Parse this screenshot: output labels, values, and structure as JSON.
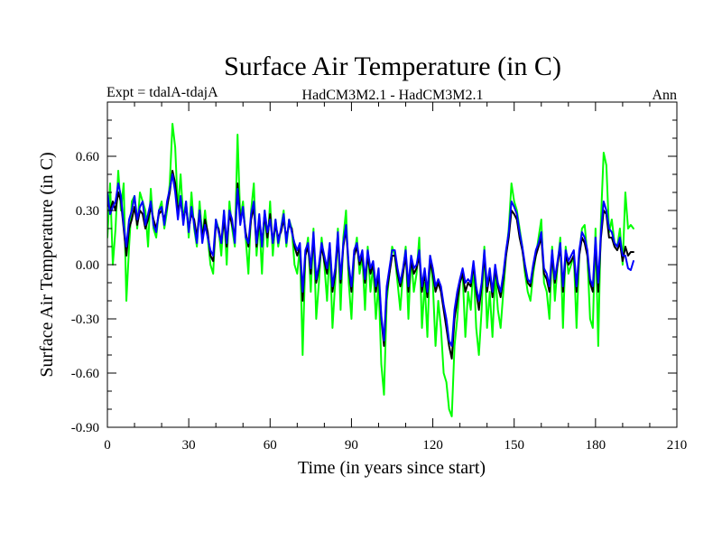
{
  "chart_data": {
    "type": "line",
    "title": "Surface Air Temperature (in C)",
    "subtitle_left": "Expt = tdalA-tdajA",
    "subtitle_center": "HadCM3M2.1 - HadCM3M2.1",
    "subtitle_right": "Ann",
    "xlabel": "Time (in years since start)",
    "ylabel": "Surface Air Temperature (in C)",
    "xlim": [
      0,
      210
    ],
    "ylim": [
      -0.9,
      0.9
    ],
    "xticks": [
      0,
      30,
      60,
      90,
      120,
      150,
      180,
      210
    ],
    "xtick_labels": [
      "0",
      "30",
      "60",
      "90",
      "120",
      "150",
      "180",
      "210"
    ],
    "yticks": [
      -0.9,
      -0.6,
      -0.3,
      0.0,
      0.3,
      0.6
    ],
    "ytick_labels": [
      "-0.90",
      "-0.60",
      "-0.30",
      "0.00",
      "0.30",
      "0.60"
    ],
    "grid": false,
    "x_start": 0,
    "x_step": 1,
    "series": [
      {
        "name": "green",
        "color": "#00ff00",
        "values": [
          0.15,
          0.45,
          0.0,
          0.2,
          0.52,
          0.3,
          0.45,
          -0.2,
          0.1,
          0.35,
          0.38,
          0.2,
          0.4,
          0.35,
          0.3,
          0.1,
          0.42,
          0.2,
          0.15,
          0.3,
          0.35,
          0.2,
          0.3,
          0.45,
          0.78,
          0.65,
          0.3,
          0.5,
          0.25,
          0.35,
          0.15,
          0.4,
          0.2,
          0.1,
          0.35,
          0.15,
          0.3,
          0.15,
          0.0,
          -0.05,
          0.25,
          0.2,
          0.05,
          0.3,
          0.0,
          0.35,
          0.2,
          0.1,
          0.72,
          0.25,
          0.35,
          0.15,
          -0.05,
          0.3,
          0.45,
          0.05,
          0.25,
          -0.05,
          0.3,
          0.1,
          0.35,
          0.05,
          0.25,
          0.1,
          0.2,
          0.3,
          0.1,
          0.25,
          0.2,
          0.0,
          -0.05,
          0.1,
          -0.5,
          0.05,
          0.15,
          -0.15,
          0.2,
          -0.3,
          -0.1,
          0.15,
          0.0,
          -0.2,
          0.1,
          -0.35,
          -0.1,
          0.2,
          -0.25,
          0.15,
          0.3,
          -0.1,
          -0.3,
          0.05,
          0.15,
          -0.05,
          0.05,
          -0.25,
          0.1,
          -0.15,
          0.0,
          -0.3,
          -0.1,
          -0.55,
          -0.72,
          -0.2,
          -0.05,
          0.1,
          0.05,
          -0.1,
          -0.25,
          -0.05,
          0.1,
          -0.3,
          0.05,
          -0.15,
          -0.05,
          0.15,
          -0.35,
          -0.1,
          -0.4,
          0.05,
          -0.1,
          -0.45,
          -0.2,
          -0.35,
          -0.6,
          -0.65,
          -0.8,
          -0.84,
          -0.45,
          -0.3,
          -0.1,
          -0.05,
          -0.4,
          -0.15,
          -0.25,
          0.0,
          -0.35,
          -0.5,
          -0.25,
          0.1,
          -0.35,
          -0.15,
          -0.4,
          -0.05,
          -0.25,
          -0.35,
          -0.15,
          0.05,
          0.2,
          0.45,
          0.35,
          0.3,
          0.2,
          0.1,
          -0.05,
          -0.15,
          -0.2,
          -0.05,
          0.05,
          0.15,
          0.25,
          -0.1,
          -0.15,
          -0.3,
          0.1,
          -0.2,
          0.0,
          0.15,
          -0.35,
          0.1,
          -0.05,
          0.0,
          0.05,
          -0.35,
          0.05,
          0.2,
          0.22,
          0.05,
          -0.3,
          -0.35,
          0.2,
          -0.45,
          0.25,
          0.62,
          0.55,
          0.18,
          0.25,
          0.12,
          0.1,
          0.2,
          0.0,
          0.4,
          0.2,
          0.22,
          0.2
        ]
      },
      {
        "name": "black",
        "color": "#000000",
        "values": [
          0.35,
          0.3,
          0.35,
          0.3,
          0.4,
          0.35,
          0.2,
          0.05,
          0.2,
          0.25,
          0.32,
          0.22,
          0.3,
          0.28,
          0.2,
          0.25,
          0.32,
          0.25,
          0.2,
          0.28,
          0.3,
          0.25,
          0.32,
          0.4,
          0.52,
          0.45,
          0.3,
          0.35,
          0.25,
          0.32,
          0.2,
          0.28,
          0.25,
          0.15,
          0.3,
          0.15,
          0.25,
          0.18,
          0.05,
          0.02,
          0.22,
          0.2,
          0.12,
          0.25,
          0.1,
          0.28,
          0.22,
          0.15,
          0.45,
          0.25,
          0.3,
          0.18,
          0.1,
          0.25,
          0.32,
          0.1,
          0.25,
          0.12,
          0.28,
          0.15,
          0.28,
          0.12,
          0.22,
          0.15,
          0.18,
          0.25,
          0.15,
          0.22,
          0.2,
          0.1,
          0.05,
          0.1,
          -0.2,
          0.05,
          0.1,
          -0.05,
          0.15,
          -0.1,
          -0.02,
          0.1,
          0.02,
          -0.05,
          0.1,
          -0.15,
          -0.05,
          0.15,
          -0.1,
          0.1,
          0.2,
          -0.02,
          -0.15,
          0.05,
          0.1,
          0.0,
          0.05,
          -0.1,
          0.05,
          -0.05,
          0.0,
          -0.15,
          -0.05,
          -0.3,
          -0.45,
          -0.15,
          -0.05,
          0.05,
          0.05,
          -0.05,
          -0.12,
          -0.05,
          0.05,
          -0.15,
          0.02,
          -0.05,
          -0.02,
          0.05,
          -0.15,
          -0.05,
          -0.18,
          0.02,
          -0.05,
          -0.15,
          -0.1,
          -0.15,
          -0.25,
          -0.35,
          -0.45,
          -0.52,
          -0.3,
          -0.2,
          -0.1,
          -0.05,
          -0.15,
          -0.1,
          -0.12,
          0.0,
          -0.15,
          -0.25,
          -0.12,
          0.05,
          -0.15,
          -0.05,
          -0.18,
          -0.02,
          -0.12,
          -0.18,
          -0.08,
          0.05,
          0.15,
          0.3,
          0.28,
          0.25,
          0.15,
          0.08,
          -0.02,
          -0.1,
          -0.12,
          -0.02,
          0.05,
          0.1,
          0.15,
          -0.05,
          -0.08,
          -0.15,
          0.05,
          -0.1,
          0.0,
          0.1,
          -0.15,
          0.05,
          0.0,
          0.02,
          0.05,
          -0.15,
          0.05,
          0.15,
          0.12,
          0.05,
          -0.1,
          -0.15,
          0.12,
          -0.15,
          0.15,
          0.3,
          0.28,
          0.15,
          0.15,
          0.1,
          0.08,
          0.12,
          0.02,
          0.1,
          0.05,
          0.07,
          0.07
        ]
      },
      {
        "name": "blue",
        "color": "#0000ff",
        "values": [
          0.4,
          0.28,
          0.32,
          0.35,
          0.45,
          0.38,
          0.22,
          0.1,
          0.25,
          0.3,
          0.38,
          0.25,
          0.32,
          0.35,
          0.22,
          0.28,
          0.35,
          0.22,
          0.18,
          0.3,
          0.32,
          0.22,
          0.35,
          0.42,
          0.5,
          0.4,
          0.25,
          0.38,
          0.22,
          0.35,
          0.18,
          0.32,
          0.22,
          0.12,
          0.3,
          0.12,
          0.22,
          0.15,
          0.08,
          0.05,
          0.25,
          0.18,
          0.12,
          0.3,
          0.12,
          0.3,
          0.25,
          0.12,
          0.42,
          0.22,
          0.32,
          0.15,
          0.12,
          0.28,
          0.35,
          0.12,
          0.28,
          0.1,
          0.3,
          0.18,
          0.25,
          0.12,
          0.25,
          0.12,
          0.2,
          0.28,
          0.12,
          0.25,
          0.18,
          0.12,
          0.08,
          0.12,
          -0.15,
          0.08,
          0.12,
          -0.02,
          0.18,
          -0.08,
          0.0,
          0.12,
          0.05,
          -0.02,
          0.12,
          -0.12,
          -0.02,
          0.18,
          -0.08,
          0.12,
          0.22,
          0.0,
          -0.12,
          0.08,
          0.12,
          0.02,
          0.08,
          -0.08,
          0.08,
          -0.02,
          0.02,
          -0.12,
          -0.02,
          -0.28,
          -0.42,
          -0.12,
          -0.02,
          0.08,
          0.08,
          -0.02,
          -0.1,
          -0.02,
          0.08,
          -0.12,
          0.05,
          -0.02,
          0.0,
          0.08,
          -0.12,
          -0.02,
          -0.15,
          0.05,
          -0.02,
          -0.12,
          -0.08,
          -0.12,
          -0.22,
          -0.3,
          -0.42,
          -0.45,
          -0.25,
          -0.15,
          -0.08,
          -0.02,
          -0.1,
          -0.08,
          -0.1,
          0.02,
          -0.12,
          -0.2,
          -0.1,
          0.08,
          -0.12,
          -0.02,
          -0.15,
          0.0,
          -0.1,
          -0.15,
          -0.05,
          0.08,
          0.18,
          0.35,
          0.32,
          0.28,
          0.18,
          0.1,
          0.0,
          -0.08,
          -0.1,
          0.0,
          0.08,
          0.12,
          0.18,
          -0.02,
          -0.05,
          -0.12,
          0.08,
          -0.08,
          0.02,
          0.12,
          -0.12,
          0.08,
          0.02,
          0.05,
          0.08,
          -0.12,
          0.08,
          0.18,
          0.15,
          0.08,
          -0.08,
          -0.12,
          0.15,
          -0.1,
          0.18,
          0.35,
          0.3,
          0.2,
          0.18,
          0.12,
          0.1,
          0.15,
          0.05,
          0.05,
          -0.02,
          -0.03,
          0.02
        ]
      }
    ]
  }
}
